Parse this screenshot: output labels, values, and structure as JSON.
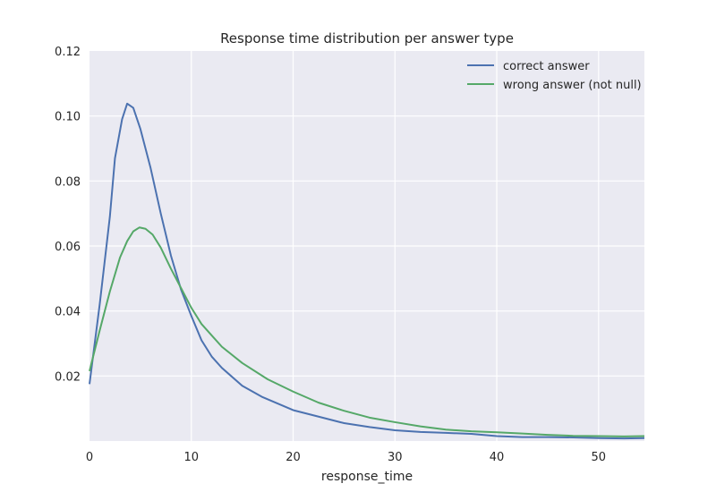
{
  "chart_data": {
    "type": "line",
    "title": "Response time distribution per answer type",
    "xlabel": "response_time",
    "ylabel": "",
    "xlim": [
      0,
      54.5
    ],
    "ylim": [
      0,
      0.12
    ],
    "xticks": [
      0,
      10,
      20,
      30,
      40,
      50
    ],
    "yticks": [
      0.02,
      0.04,
      0.06,
      0.08,
      0.1,
      0.12
    ],
    "ytick_labels": [
      "0.02",
      "0.04",
      "0.06",
      "0.08",
      "0.10",
      "0.12"
    ],
    "grid": true,
    "legend_position": "top-right",
    "series": [
      {
        "name": "correct answer",
        "color": "#4c72b0",
        "points": [
          [
            0,
            0.0175
          ],
          [
            1,
            0.042
          ],
          [
            2,
            0.069
          ],
          [
            2.5,
            0.087
          ],
          [
            3.2,
            0.099
          ],
          [
            3.7,
            0.1038
          ],
          [
            4.3,
            0.1025
          ],
          [
            5,
            0.096
          ],
          [
            6,
            0.084
          ],
          [
            7,
            0.07
          ],
          [
            8,
            0.057
          ],
          [
            9,
            0.0465
          ],
          [
            10,
            0.0385
          ],
          [
            11,
            0.031
          ],
          [
            12,
            0.026
          ],
          [
            13,
            0.0225
          ],
          [
            15,
            0.017
          ],
          [
            17,
            0.0135
          ],
          [
            20,
            0.0095
          ],
          [
            22.5,
            0.0075
          ],
          [
            25,
            0.0055
          ],
          [
            27.5,
            0.0043
          ],
          [
            30,
            0.0033
          ],
          [
            32.5,
            0.0028
          ],
          [
            35,
            0.0025
          ],
          [
            37.5,
            0.0022
          ],
          [
            40,
            0.0015
          ],
          [
            42.5,
            0.0012
          ],
          [
            45,
            0.0012
          ],
          [
            47.5,
            0.0011
          ],
          [
            50,
            0.0009
          ],
          [
            52.5,
            0.0008
          ],
          [
            54.5,
            0.0009
          ]
        ]
      },
      {
        "name": "wrong answer (not null)",
        "color": "#55a868",
        "points": [
          [
            0,
            0.0215
          ],
          [
            1,
            0.034
          ],
          [
            2,
            0.046
          ],
          [
            3,
            0.0565
          ],
          [
            3.7,
            0.0615
          ],
          [
            4.3,
            0.0645
          ],
          [
            4.9,
            0.0657
          ],
          [
            5.5,
            0.0653
          ],
          [
            6.2,
            0.0635
          ],
          [
            7,
            0.0595
          ],
          [
            8,
            0.053
          ],
          [
            9,
            0.047
          ],
          [
            10,
            0.041
          ],
          [
            11,
            0.036
          ],
          [
            12,
            0.0325
          ],
          [
            13,
            0.029
          ],
          [
            15,
            0.024
          ],
          [
            17.5,
            0.019
          ],
          [
            20,
            0.0152
          ],
          [
            22.5,
            0.0118
          ],
          [
            25,
            0.0093
          ],
          [
            27.5,
            0.0072
          ],
          [
            30,
            0.0058
          ],
          [
            32.5,
            0.0045
          ],
          [
            35,
            0.0035
          ],
          [
            37.5,
            0.003
          ],
          [
            40,
            0.0027
          ],
          [
            42.5,
            0.0023
          ],
          [
            45,
            0.0019
          ],
          [
            47.5,
            0.0016
          ],
          [
            50,
            0.0015
          ],
          [
            52.5,
            0.0014
          ],
          [
            54.5,
            0.0015
          ]
        ]
      }
    ]
  }
}
